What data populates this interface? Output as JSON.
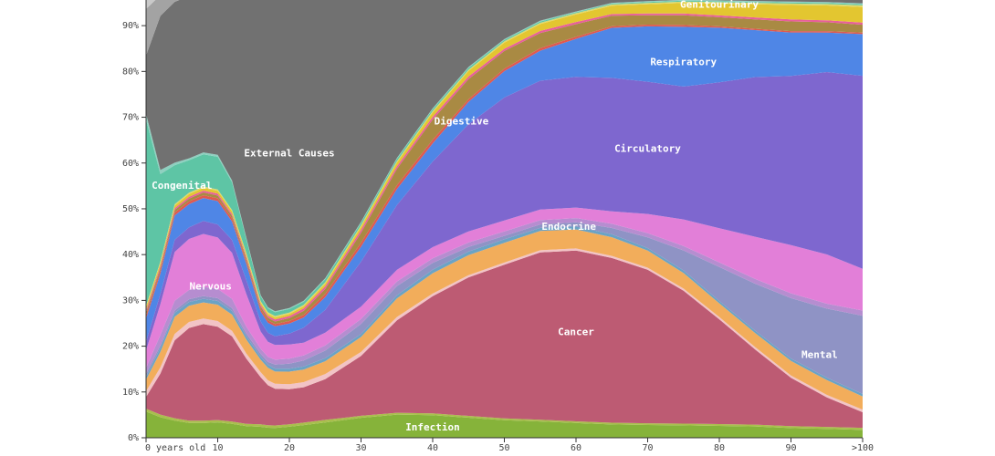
{
  "chart_data": {
    "type": "area",
    "stacked": true,
    "normalized": true,
    "x": [
      0,
      2,
      4,
      6,
      8,
      10,
      12,
      14,
      16,
      17,
      18,
      20,
      22,
      25,
      30,
      35,
      40,
      45,
      50,
      55,
      60,
      65,
      70,
      75,
      80,
      85,
      90,
      95,
      100
    ],
    "x_ticks": [
      {
        "value": 0,
        "label": "0 years old"
      },
      {
        "value": 10,
        "label": "10"
      },
      {
        "value": 20,
        "label": "20"
      },
      {
        "value": 30,
        "label": "30"
      },
      {
        "value": 40,
        "label": "40"
      },
      {
        "value": 50,
        "label": "50"
      },
      {
        "value": 60,
        "label": "60"
      },
      {
        "value": 70,
        "label": "70"
      },
      {
        "value": 80,
        "label": "80"
      },
      {
        "value": 90,
        "label": "90"
      },
      {
        "value": 100,
        "label": ">100"
      }
    ],
    "y_ticks": [
      "0%",
      "10%",
      "20%",
      "30%",
      "40%",
      "50%",
      "60%",
      "70%",
      "80%",
      "90%"
    ],
    "ylim": [
      0,
      1
    ],
    "series": [
      {
        "name": "Infection",
        "color": "#86b33a",
        "values": [
          0.045,
          0.04,
          0.035,
          0.032,
          0.032,
          0.033,
          0.03,
          0.025,
          0.022,
          0.02,
          0.02,
          0.022,
          0.025,
          0.03,
          0.04,
          0.05,
          0.05,
          0.045,
          0.04,
          0.038,
          0.035,
          0.032,
          0.03,
          0.028,
          0.026,
          0.024,
          0.02,
          0.018,
          0.015
        ]
      },
      {
        "name": "",
        "color": "#a9bf4d",
        "values": [
          0.005,
          0.005,
          0.005,
          0.005,
          0.005,
          0.005,
          0.005,
          0.005,
          0.005,
          0.005,
          0.005,
          0.005,
          0.005,
          0.005,
          0.004,
          0.004,
          0.004,
          0.004,
          0.004,
          0.004,
          0.004,
          0.004,
          0.004,
          0.004,
          0.004,
          0.004,
          0.004,
          0.004,
          0.004
        ]
      },
      {
        "name": "Cancer",
        "color": "#bd5b73",
        "values": [
          0.02,
          0.08,
          0.16,
          0.2,
          0.21,
          0.2,
          0.185,
          0.14,
          0.095,
          0.08,
          0.075,
          0.07,
          0.07,
          0.08,
          0.12,
          0.2,
          0.26,
          0.31,
          0.35,
          0.39,
          0.405,
          0.395,
          0.36,
          0.3,
          0.23,
          0.16,
          0.1,
          0.06,
          0.03
        ]
      },
      {
        "name": "",
        "color": "#f2c4c6",
        "values": [
          0.01,
          0.012,
          0.013,
          0.013,
          0.012,
          0.012,
          0.012,
          0.011,
          0.01,
          0.01,
          0.01,
          0.01,
          0.01,
          0.01,
          0.008,
          0.007,
          0.006,
          0.005,
          0.005,
          0.005,
          0.005,
          0.005,
          0.005,
          0.005,
          0.005,
          0.005,
          0.005,
          0.005,
          0.005
        ]
      },
      {
        "name": "Endocrine",
        "color": "#f2ad5b",
        "values": [
          0.02,
          0.03,
          0.035,
          0.035,
          0.035,
          0.035,
          0.035,
          0.03,
          0.025,
          0.025,
          0.025,
          0.025,
          0.025,
          0.025,
          0.03,
          0.04,
          0.045,
          0.045,
          0.045,
          0.045,
          0.045,
          0.045,
          0.04,
          0.035,
          0.03,
          0.03,
          0.03,
          0.03,
          0.025
        ]
      },
      {
        "name": "",
        "color": "#6ba3c5",
        "values": [
          0.005,
          0.008,
          0.008,
          0.008,
          0.008,
          0.008,
          0.008,
          0.007,
          0.006,
          0.006,
          0.006,
          0.006,
          0.006,
          0.006,
          0.006,
          0.007,
          0.008,
          0.008,
          0.008,
          0.007,
          0.007,
          0.007,
          0.006,
          0.006,
          0.005,
          0.005,
          0.005,
          0.005,
          0.005
        ]
      },
      {
        "name": "Mental",
        "color": "#8f93c5",
        "values": [
          0.005,
          0.005,
          0.005,
          0.006,
          0.006,
          0.006,
          0.006,
          0.006,
          0.006,
          0.006,
          0.008,
          0.01,
          0.012,
          0.015,
          0.02,
          0.02,
          0.015,
          0.01,
          0.008,
          0.008,
          0.01,
          0.015,
          0.025,
          0.045,
          0.075,
          0.1,
          0.125,
          0.14,
          0.15
        ]
      },
      {
        "name": "",
        "color": "#b68dd0",
        "values": [
          0.01,
          0.02,
          0.02,
          0.02,
          0.02,
          0.02,
          0.02,
          0.015,
          0.01,
          0.01,
          0.01,
          0.01,
          0.01,
          0.01,
          0.01,
          0.01,
          0.01,
          0.01,
          0.01,
          0.01,
          0.01,
          0.01,
          0.01,
          0.01,
          0.01,
          0.01,
          0.01,
          0.01,
          0.01
        ]
      },
      {
        "name": "Nervous",
        "color": "#e27fd8",
        "values": [
          0.03,
          0.06,
          0.1,
          0.11,
          0.115,
          0.11,
          0.1,
          0.07,
          0.035,
          0.03,
          0.03,
          0.028,
          0.025,
          0.025,
          0.025,
          0.025,
          0.025,
          0.025,
          0.025,
          0.025,
          0.025,
          0.03,
          0.045,
          0.06,
          0.075,
          0.09,
          0.1,
          0.1,
          0.08
        ]
      },
      {
        "name": "Circulatory",
        "color": "#7e67cf",
        "values": [
          0.015,
          0.02,
          0.025,
          0.025,
          0.028,
          0.028,
          0.028,
          0.03,
          0.02,
          0.018,
          0.018,
          0.022,
          0.03,
          0.045,
          0.09,
          0.14,
          0.19,
          0.24,
          0.28,
          0.3,
          0.31,
          0.32,
          0.31,
          0.3,
          0.32,
          0.34,
          0.35,
          0.37,
          0.37
        ]
      },
      {
        "name": "Respiratory",
        "color": "#4f86e6",
        "values": [
          0.04,
          0.04,
          0.05,
          0.05,
          0.05,
          0.05,
          0.04,
          0.035,
          0.02,
          0.02,
          0.02,
          0.02,
          0.02,
          0.025,
          0.03,
          0.035,
          0.04,
          0.05,
          0.06,
          0.07,
          0.09,
          0.12,
          0.13,
          0.135,
          0.12,
          0.1,
          0.09,
          0.08,
          0.08
        ]
      },
      {
        "name": "",
        "color": "#e0594f",
        "values": [
          0.005,
          0.006,
          0.006,
          0.006,
          0.006,
          0.006,
          0.006,
          0.005,
          0.005,
          0.005,
          0.005,
          0.005,
          0.005,
          0.006,
          0.008,
          0.008,
          0.008,
          0.006,
          0.006,
          0.006,
          0.005,
          0.004,
          0.004,
          0.004,
          0.003,
          0.003,
          0.003,
          0.003,
          0.003
        ]
      },
      {
        "name": "Digestive",
        "color": "#a98a43",
        "values": [
          0.005,
          0.005,
          0.005,
          0.006,
          0.006,
          0.006,
          0.006,
          0.006,
          0.005,
          0.005,
          0.005,
          0.006,
          0.008,
          0.01,
          0.02,
          0.035,
          0.045,
          0.045,
          0.04,
          0.035,
          0.03,
          0.025,
          0.022,
          0.022,
          0.02,
          0.02,
          0.02,
          0.018,
          0.015
        ]
      },
      {
        "name": "",
        "color": "#e85f9a",
        "values": [
          0.004,
          0.004,
          0.004,
          0.004,
          0.004,
          0.004,
          0.004,
          0.004,
          0.004,
          0.004,
          0.004,
          0.004,
          0.005,
          0.005,
          0.006,
          0.006,
          0.006,
          0.006,
          0.005,
          0.005,
          0.005,
          0.004,
          0.004,
          0.004,
          0.004,
          0.004,
          0.004,
          0.004,
          0.004
        ]
      },
      {
        "name": "Genitourinary",
        "color": "#e3c630",
        "values": [
          0.005,
          0.005,
          0.005,
          0.006,
          0.006,
          0.006,
          0.006,
          0.005,
          0.004,
          0.004,
          0.004,
          0.004,
          0.004,
          0.005,
          0.006,
          0.008,
          0.01,
          0.012,
          0.014,
          0.016,
          0.018,
          0.02,
          0.022,
          0.024,
          0.026,
          0.028,
          0.03,
          0.03,
          0.03
        ]
      },
      {
        "name": "",
        "color": "#e0d86a",
        "values": [
          0.003,
          0.003,
          0.003,
          0.003,
          0.003,
          0.003,
          0.003,
          0.003,
          0.003,
          0.003,
          0.003,
          0.003,
          0.003,
          0.003,
          0.003,
          0.003,
          0.003,
          0.003,
          0.003,
          0.003,
          0.003,
          0.003,
          0.003,
          0.003,
          0.003,
          0.003,
          0.003,
          0.003,
          0.003
        ]
      },
      {
        "name": "Congenital",
        "color": "#5ec5a5",
        "values": [
          0.32,
          0.17,
          0.08,
          0.07,
          0.07,
          0.07,
          0.06,
          0.03,
          0.01,
          0.008,
          0.008,
          0.007,
          0.006,
          0.006,
          0.005,
          0.005,
          0.004,
          0.004,
          0.003,
          0.003,
          0.002,
          0.002,
          0.002,
          0.002,
          0.002,
          0.002,
          0.002,
          0.002,
          0.002
        ]
      },
      {
        "name": "",
        "color": "#8fd0c0",
        "values": [
          0.01,
          0.008,
          0.005,
          0.004,
          0.004,
          0.004,
          0.004,
          0.003,
          0.002,
          0.002,
          0.002,
          0.002,
          0.002,
          0.002,
          0.002,
          0.002,
          0.002,
          0.002,
          0.002,
          0.002,
          0.002,
          0.002,
          0.002,
          0.002,
          0.002,
          0.002,
          0.002,
          0.002,
          0.002
        ]
      },
      {
        "name": "External Causes",
        "color": "#717171",
        "values": [
          0.1,
          0.3,
          0.33,
          0.35,
          0.34,
          0.34,
          0.4,
          0.52,
          0.6,
          0.62,
          0.64,
          0.62,
          0.6,
          0.55,
          0.45,
          0.35,
          0.25,
          0.16,
          0.1,
          0.06,
          0.04,
          0.02,
          0.015,
          0.01,
          0.01,
          0.01,
          0.01,
          0.01,
          0.01
        ]
      },
      {
        "name": "",
        "color": "#a3a3a3",
        "values": [
          0.08,
          0.04,
          0.02,
          0.015,
          0.015,
          0.015,
          0.015,
          0.015,
          0.015,
          0.015,
          0.015,
          0.015,
          0.015,
          0.015,
          0.015,
          0.015,
          0.015,
          0.015,
          0.015,
          0.015,
          0.015,
          0.015,
          0.015,
          0.015,
          0.015,
          0.015,
          0.015,
          0.015,
          0.015
        ]
      },
      {
        "name": "",
        "color": "#c9c9c9",
        "values": [
          0.05,
          0.03,
          0.025,
          0.02,
          0.02,
          0.02,
          0.02,
          0.02,
          0.02,
          0.02,
          0.02,
          0.02,
          0.02,
          0.02,
          0.02,
          0.02,
          0.02,
          0.02,
          0.02,
          0.02,
          0.02,
          0.02,
          0.02,
          0.02,
          0.02,
          0.02,
          0.02,
          0.02,
          0.02
        ]
      }
    ],
    "labels": [
      {
        "text": "Infection",
        "x": 40,
        "y": 0.022
      },
      {
        "text": "Cancer",
        "x": 60,
        "y": 0.23
      },
      {
        "text": "Endocrine",
        "x": 59,
        "y": 0.46
      },
      {
        "text": "Mental",
        "x": 94,
        "y": 0.18
      },
      {
        "text": "Nervous",
        "x": 9,
        "y": 0.33
      },
      {
        "text": "Circulatory",
        "x": 70,
        "y": 0.63
      },
      {
        "text": "Respiratory",
        "x": 75,
        "y": 0.82
      },
      {
        "text": "Digestive",
        "x": 44,
        "y": 0.69
      },
      {
        "text": "Genitourinary",
        "x": 80,
        "y": 0.945
      },
      {
        "text": "Congenital",
        "x": 5,
        "y": 0.55
      },
      {
        "text": "External Causes",
        "x": 20,
        "y": 0.62
      }
    ]
  }
}
